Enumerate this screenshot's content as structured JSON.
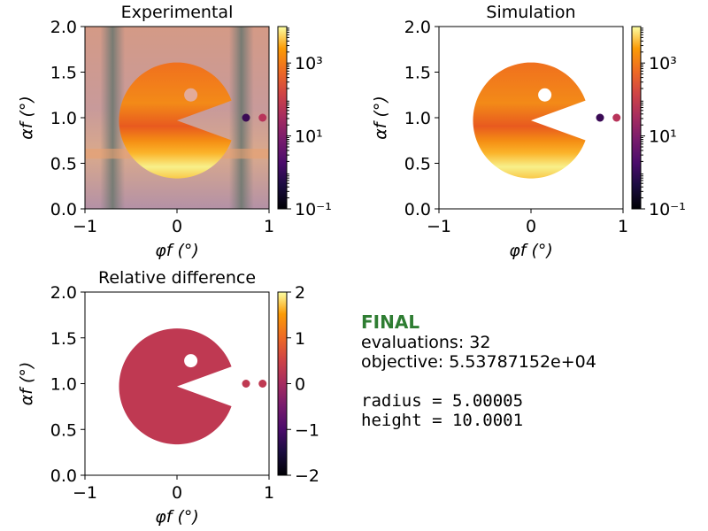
{
  "chart_data": [
    {
      "type": "heatmap",
      "title": "Experimental",
      "xlabel": "φf (°)",
      "ylabel": "αf (°)",
      "xlim": [
        -1,
        1
      ],
      "ylim": [
        0,
        2
      ],
      "xticks": [
        "−1",
        "0",
        "1"
      ],
      "yticks": [
        "0.0",
        "0.5",
        "1.0",
        "1.5",
        "2.0"
      ],
      "colorbar": {
        "scale": "log",
        "range": [
          0.1,
          10000
        ],
        "ticks": [
          "10⁻¹",
          "10¹",
          "10³"
        ]
      },
      "colormap": "inferno",
      "background": "noisy",
      "shape": {
        "center": [
          0,
          0.97
        ],
        "radius": 0.63,
        "mouth_half_angle_deg": 20,
        "eye": [
          0.15,
          1.25
        ],
        "dots": [
          [
            0.75,
            1.0
          ],
          [
            0.93,
            1.0
          ]
        ]
      }
    },
    {
      "type": "heatmap",
      "title": "Simulation",
      "xlabel": "φf (°)",
      "ylabel": "αf (°)",
      "xlim": [
        -1,
        1
      ],
      "ylim": [
        0,
        2
      ],
      "xticks": [
        "−1",
        "0",
        "1"
      ],
      "yticks": [
        "0.0",
        "0.5",
        "1.0",
        "1.5",
        "2.0"
      ],
      "colorbar": {
        "scale": "log",
        "range": [
          0.1,
          10000
        ],
        "ticks": [
          "10⁻¹",
          "10¹",
          "10³"
        ]
      },
      "colormap": "inferno",
      "background": "white",
      "shape": {
        "center": [
          0,
          0.97
        ],
        "radius": 0.63,
        "mouth_half_angle_deg": 20,
        "eye": [
          0.15,
          1.25
        ],
        "dots": [
          [
            0.75,
            1.0
          ],
          [
            0.93,
            1.0
          ]
        ]
      }
    },
    {
      "type": "heatmap",
      "title": "Relative difference",
      "xlabel": "φf (°)",
      "ylabel": "αf (°)",
      "xlim": [
        -1,
        1
      ],
      "ylim": [
        0,
        2
      ],
      "xticks": [
        "−1",
        "0",
        "1"
      ],
      "yticks": [
        "0.0",
        "0.5",
        "1.0",
        "1.5",
        "2.0"
      ],
      "colorbar": {
        "scale": "linear",
        "range": [
          -2,
          2
        ],
        "ticks": [
          "−2",
          "−1",
          "0",
          "1",
          "2"
        ]
      },
      "colormap": "inferno",
      "value": 0,
      "fill_color": "#bf3952"
    }
  ],
  "final": {
    "title": "FINAL",
    "evaluations": "evaluations: 32",
    "objective": "objective: 5.53787152e+04",
    "radius": "radius = 5.00005",
    "height": "height = 10.0001"
  },
  "colors": {
    "final_title": "#2e7d32",
    "diff_fill": "#bf3952"
  }
}
